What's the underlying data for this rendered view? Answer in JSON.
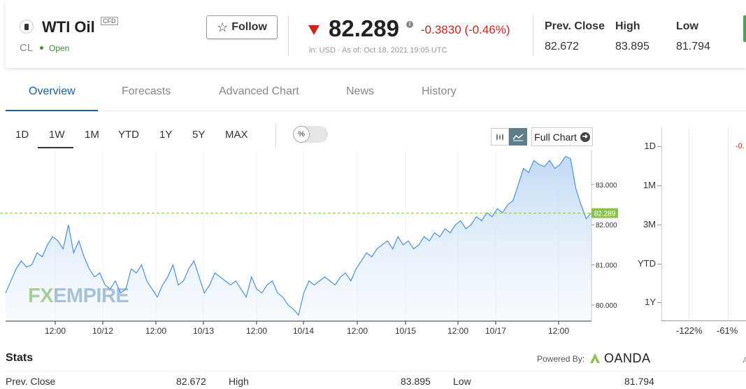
{
  "instrument": {
    "name": "WTI Oil",
    "badge": "CFD",
    "symbol": "CL",
    "status": "Open",
    "follow_label": "Follow"
  },
  "quote": {
    "price": "82.289",
    "change": "-0.3830 (-0.46%)",
    "currency_asof": "in: USD  ·  As of: Oct 18, 2021 19:05 UTC",
    "info_icon": "i"
  },
  "stats_header": [
    {
      "label": "Prev. Close",
      "value": "82.672"
    },
    {
      "label": "High",
      "value": "83.895"
    },
    {
      "label": "Low",
      "value": "81.794"
    }
  ],
  "tabs": [
    "Overview",
    "Forecasts",
    "Advanced Chart",
    "News",
    "History"
  ],
  "active_tab": "Overview",
  "ranges": [
    "1D",
    "1W",
    "1M",
    "YTD",
    "1Y",
    "5Y",
    "MAX"
  ],
  "active_range": "1W",
  "percent_toggle": "%",
  "full_chart_label": "Full Chart",
  "watermark": {
    "fx": "FX",
    "empire": "EMPIRE"
  },
  "colors": {
    "accent": "#1f5c9a",
    "negative": "#d02020",
    "positive": "#3cb043",
    "line": "#4a90d9",
    "last_price_badge": "#8bc34a"
  },
  "chart_data": {
    "type": "area",
    "x_ticks": [
      "12:00",
      "10/12",
      "12:00",
      "10/13",
      "12:00",
      "10/14",
      "12:00",
      "10/15",
      "12:00",
      "10/17",
      "12:00"
    ],
    "y_ticks": [
      "83.000",
      "82.000",
      "81.000",
      "80.000"
    ],
    "ylim": [
      79.6,
      83.85
    ],
    "last_price": "82.289",
    "values": [
      80.3,
      80.6,
      80.9,
      81.1,
      80.95,
      81.0,
      81.3,
      81.2,
      81.5,
      81.7,
      81.6,
      81.4,
      82.0,
      81.3,
      81.6,
      81.2,
      80.9,
      80.7,
      80.8,
      80.5,
      80.4,
      80.6,
      80.3,
      80.4,
      80.9,
      80.8,
      81.0,
      80.6,
      80.4,
      80.2,
      80.5,
      80.7,
      81.0,
      80.5,
      80.6,
      80.9,
      81.1,
      80.7,
      80.3,
      80.5,
      80.8,
      80.7,
      80.6,
      80.5,
      80.6,
      80.4,
      80.2,
      80.7,
      80.4,
      80.3,
      80.5,
      80.6,
      80.3,
      80.2,
      80.0,
      79.9,
      79.75,
      80.3,
      80.6,
      80.5,
      80.6,
      80.7,
      80.6,
      80.5,
      80.7,
      80.8,
      80.6,
      80.9,
      81.1,
      81.3,
      81.2,
      81.4,
      81.5,
      81.6,
      81.4,
      81.7,
      81.5,
      81.6,
      81.4,
      81.5,
      81.7,
      81.6,
      81.8,
      81.7,
      81.9,
      81.8,
      82.0,
      82.1,
      81.9,
      82.0,
      82.2,
      82.1,
      82.3,
      82.2,
      82.4,
      82.3,
      82.5,
      82.6,
      83.0,
      83.4,
      83.3,
      83.6,
      83.5,
      83.45,
      83.6,
      83.4,
      83.5,
      83.7,
      83.65,
      82.9,
      82.5,
      82.15,
      82.3
    ]
  },
  "rank_chart": {
    "y_labels": [
      "1D",
      "1M",
      "3M",
      "YTD",
      "1Y"
    ],
    "x_labels": [
      "-122%",
      "-61%"
    ],
    "partial_value": "-0."
  },
  "stats": {
    "title": "Stats",
    "powered_by": "Powered By:",
    "provider": "OANDA",
    "row": [
      {
        "label": "Prev. Close",
        "value": "82.672"
      },
      {
        "label": "High",
        "value": "83.895"
      },
      {
        "label": "Low",
        "value": "81.794"
      }
    ],
    "edge_text": "A"
  }
}
